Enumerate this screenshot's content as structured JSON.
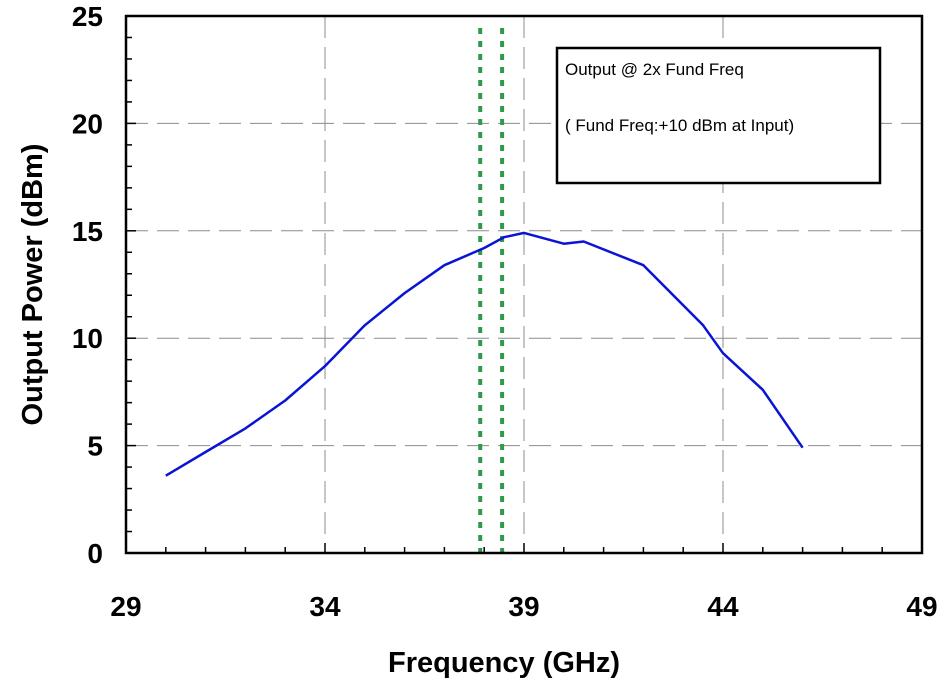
{
  "chart_data": {
    "type": "line",
    "title": "",
    "xlabel": "Frequency (GHz)",
    "ylabel": "Output Power (dBm)",
    "xlim": [
      29,
      49
    ],
    "ylim": [
      0,
      25
    ],
    "xticks": [
      29,
      34,
      39,
      44,
      49
    ],
    "yticks": [
      0,
      5,
      10,
      15,
      20,
      25
    ],
    "x_tick_labels": [
      "29",
      "34",
      "39",
      "44",
      "49"
    ],
    "y_tick_labels": [
      "0",
      "5",
      "10",
      "15",
      "20",
      "25"
    ],
    "grid": true,
    "series": [
      {
        "name": "",
        "color": "#0a14d2",
        "x": [
          30,
          31,
          32,
          33,
          34,
          35,
          36,
          37,
          38,
          38.5,
          39,
          40,
          40.5,
          42,
          43.5,
          44,
          45,
          46
        ],
        "y": [
          3.6,
          4.7,
          5.8,
          7.1,
          8.7,
          10.6,
          12.1,
          13.4,
          14.2,
          14.7,
          14.9,
          14.4,
          14.5,
          13.4,
          10.6,
          9.3,
          7.6,
          4.9
        ]
      }
    ],
    "vertical_markers": {
      "color": "#2e9a4a",
      "style": "dotted",
      "x": [
        37.9,
        38.45
      ]
    },
    "annotation": {
      "lines": [
        "Output @ 2x Fund Freq",
        "( Fund Freq:+10 dBm at Input)"
      ],
      "position": "top-right"
    }
  }
}
